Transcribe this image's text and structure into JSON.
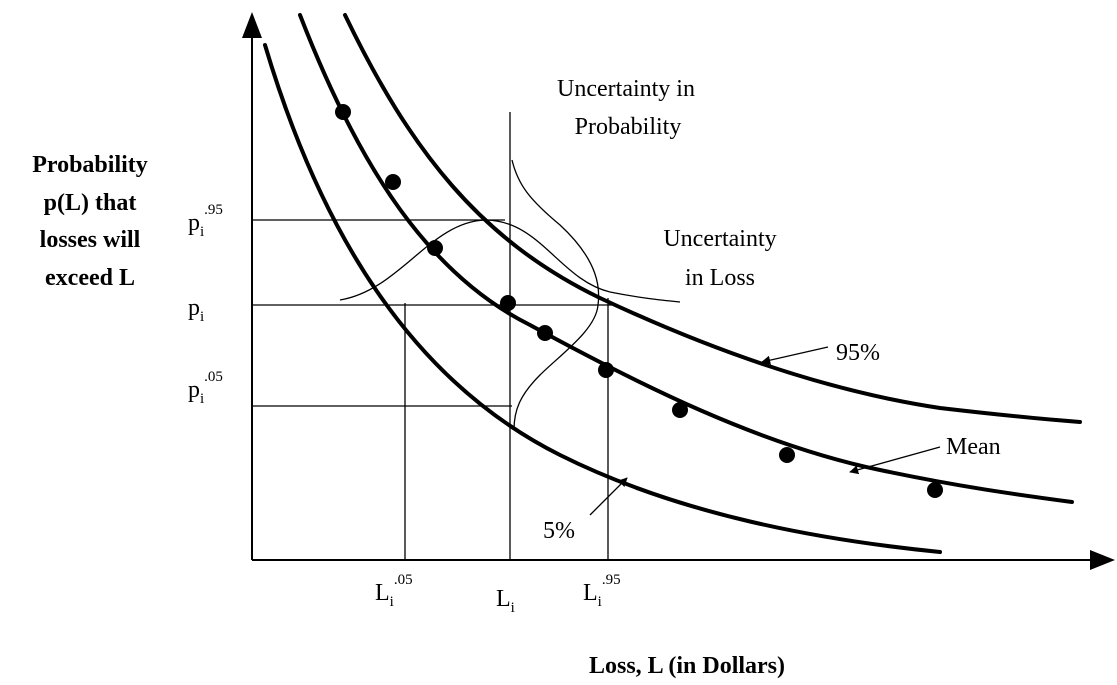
{
  "y_axis_label": [
    "Probability",
    "p(L) that",
    "losses will",
    "exceed  L"
  ],
  "x_axis_label": "Loss, L (in Dollars)",
  "y_ticks": [
    {
      "base": "p",
      "sub": "i",
      "sup": ".95"
    },
    {
      "base": "p",
      "sub": "i"
    },
    {
      "base": "p",
      "sub": "i",
      "sup": ".05"
    }
  ],
  "x_ticks": [
    {
      "base": "L",
      "sub": "i",
      "sup": ".05"
    },
    {
      "base": "L",
      "sub": "i"
    },
    {
      "base": "L",
      "sub": "i",
      "sup": ".95"
    }
  ],
  "annotations": {
    "uncertainty_probability": [
      "Uncertainty in",
      "Probability"
    ],
    "uncertainty_loss": [
      "Uncertainty",
      "in Loss"
    ],
    "curve_95": "95%",
    "curve_mean": "Mean",
    "curve_5": "5%"
  }
}
